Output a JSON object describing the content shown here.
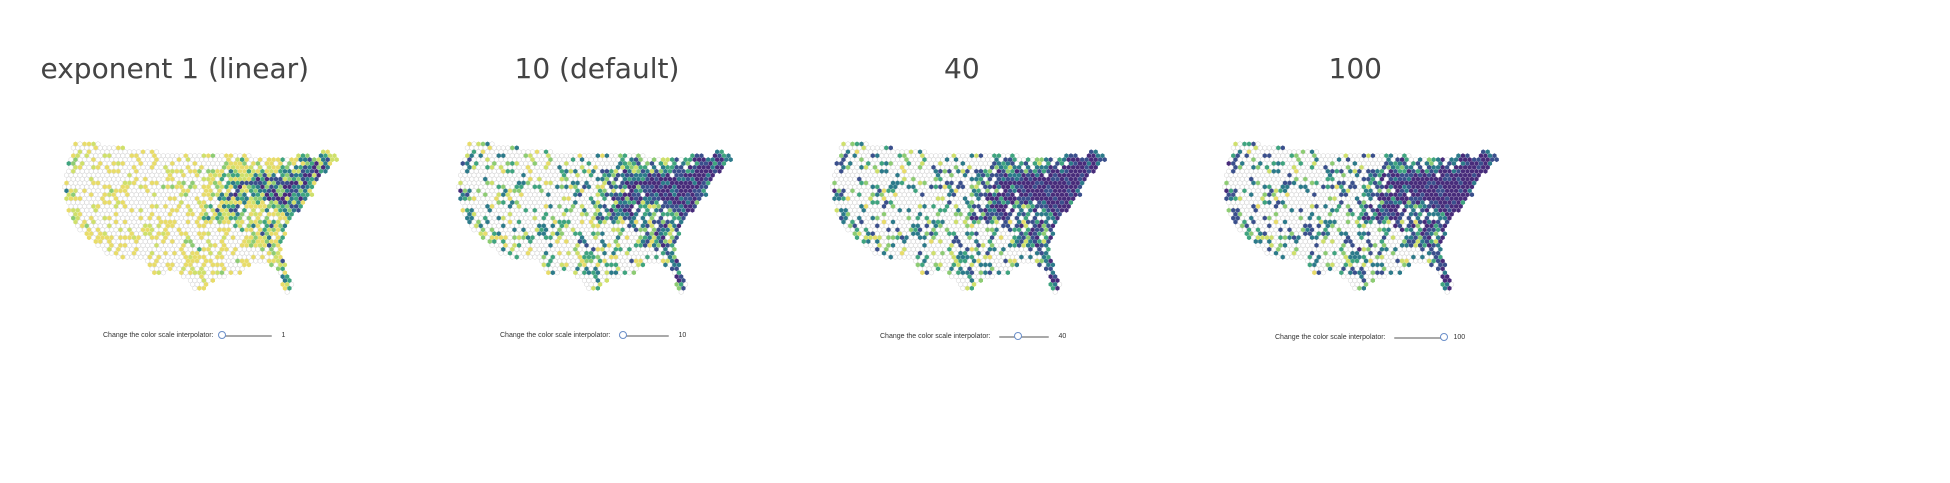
{
  "panels": [
    {
      "title": "exponent 1 (linear)",
      "exponent": 1,
      "control_label": "Change the color scale interpolator:",
      "slider_value": "1",
      "slider_fraction": 0.0
    },
    {
      "title": "10 (default)",
      "exponent": 10,
      "control_label": "Change the color scale interpolator:",
      "slider_value": "10",
      "slider_fraction": 0.09
    },
    {
      "title": "40",
      "exponent": 40,
      "control_label": "Change the color scale interpolator:",
      "slider_value": "40",
      "slider_fraction": 0.39
    },
    {
      "title": "100",
      "exponent": 100,
      "control_label": "Change the color scale interpolator:",
      "slider_value": "100",
      "slider_fraction": 1.0
    }
  ],
  "colors": {
    "empty_hex": "#d6d6d6",
    "palette": [
      "#e8dc6a",
      "#cfe06b",
      "#8dcc73",
      "#3fa47f",
      "#2c7a8a",
      "#3a4f8c",
      "#472b7a"
    ]
  }
}
